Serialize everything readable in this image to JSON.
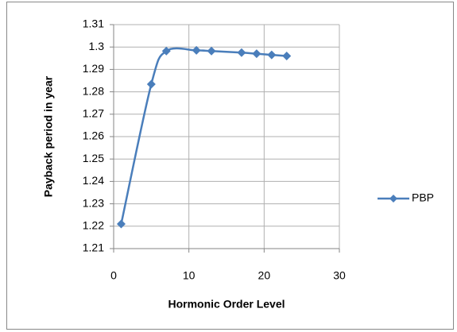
{
  "chart_data": {
    "type": "scatter",
    "xlabel": "Hormonic Order Level",
    "ylabel": "Payback period in year",
    "x": [
      1,
      5,
      7,
      11,
      13,
      17,
      19,
      21,
      23
    ],
    "series": [
      {
        "name": "PBP",
        "color": "#4a7ebb",
        "values": [
          1.221,
          1.2834,
          1.2982,
          1.2985,
          1.2982,
          1.2975,
          1.297,
          1.2965,
          1.296
        ]
      }
    ],
    "xlim": [
      0,
      30
    ],
    "xticks": [
      0,
      10,
      20,
      30
    ],
    "ylim": [
      1.21,
      1.31
    ],
    "yticks": [
      1.21,
      1.22,
      1.23,
      1.24,
      1.25,
      1.26,
      1.27,
      1.28,
      1.29,
      1.3,
      1.31
    ],
    "grid": true,
    "smooth": true,
    "legend": "right"
  }
}
